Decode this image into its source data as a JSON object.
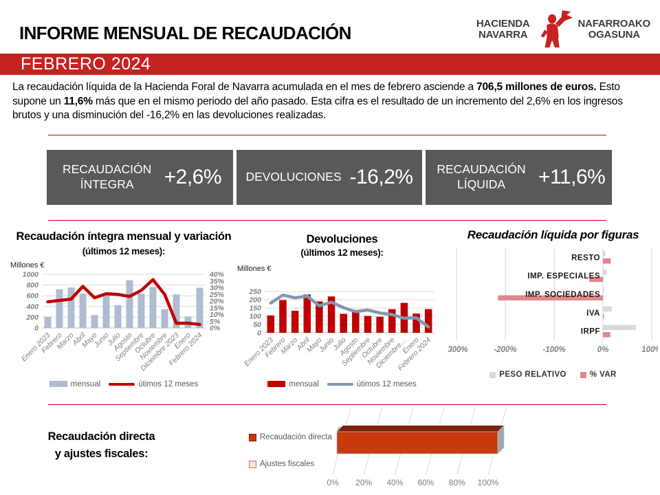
{
  "header": {
    "title": "INFORME MENSUAL DE RECAUDACIÓN",
    "banner": "FEBRERO 2024",
    "logo": {
      "hacienda_line1": "HACIENDA",
      "hacienda_line2": "NAVARRA",
      "ogasuna_line1": "NAFARROAKO",
      "ogasuna_line2": "OGASUNA"
    }
  },
  "intro": {
    "pre": "La recaudación líquida de la Hacienda Foral de Navarra acumulada en el mes de febrero asciende a ",
    "bold1": "706,5 millones de euros.",
    "mid": " Esto supone un ",
    "bold2": "11,6%",
    "post": " más que en el mismo periodo del año pasado. Esta cifra es el resultado de un incremento del 2,6% en los ingresos brutos y una disminución del -16,2% en las devoluciones realizadas."
  },
  "kpis": [
    {
      "label": "RECAUDACIÓN ÍNTEGRA",
      "value": "+2,6%"
    },
    {
      "label": "DEVOLUCIONES",
      "value": "-16,2%"
    },
    {
      "label": "RECAUDACIÓN LÍQUIDA",
      "value": "+11,6%"
    }
  ],
  "bottom_section": {
    "title_line1": "Recaudación directa",
    "title_line2": "y ajustes fiscales:"
  },
  "chart_data": [
    {
      "id": "integra",
      "type": "bar+line",
      "title_main": "Recaudación íntegra mensual y variación",
      "title_sub": "(últimos 12 meses):",
      "units_label": "Millones €",
      "categories": [
        "Enero 2023",
        "Febrero",
        "Marzo",
        "Abril",
        "Mayo",
        "Junio",
        "Julio",
        "Agosto",
        "Septiembre",
        "Octubre",
        "Noviembre",
        "Diciembre 2023",
        "Enero",
        "Febrero 2024"
      ],
      "bar_series": {
        "name": "mensual",
        "values": [
          210,
          720,
          755,
          640,
          240,
          615,
          425,
          890,
          640,
          765,
          350,
          625,
          215,
          750
        ]
      },
      "line_series": {
        "name": "útimos 12 meses",
        "axis": "right",
        "values": [
          19.5,
          20.5,
          21.5,
          31,
          22.5,
          25.5,
          25,
          23.5,
          28,
          36,
          25,
          3.5,
          3.5,
          2.6
        ]
      },
      "y_left": {
        "min": 0,
        "max": 1000,
        "step": 200
      },
      "y_right": {
        "min": 0,
        "max": 40,
        "step": 5,
        "suffix": "%"
      }
    },
    {
      "id": "devoluciones",
      "type": "bar+line",
      "title_main": "Devoluciones",
      "title_sub": "(últimos 12 meses):",
      "units_label": "Millones €",
      "categories": [
        "Enero 2023",
        "Febrero",
        "Marzo",
        "Abril",
        "Mayo",
        "Junio",
        "Julio",
        "Agosto",
        "Septiembre",
        "Octubre",
        "Noviembre",
        "Diciembre…",
        "Enero",
        "Febrero 2024"
      ],
      "bar_series": {
        "name": "mensual",
        "values": [
          105,
          198,
          133,
          232,
          190,
          220,
          115,
          128,
          102,
          97,
          143,
          181,
          116,
          143
        ]
      },
      "line_series": {
        "name": "útimos 12 meses",
        "axis": "left",
        "values": [
          180,
          228,
          212,
          222,
          163,
          185,
          152,
          128,
          138,
          120,
          110,
          88,
          90,
          35
        ]
      },
      "y_left": {
        "min": 0,
        "max": 250,
        "step": 50
      }
    },
    {
      "id": "figuras",
      "type": "hbar-grouped",
      "title": "Recaudación líquida por figuras",
      "categories": [
        "RESTO",
        "IMP. ESPECIALES",
        "IMP. SOCIEDADES",
        "IVA",
        "IRPF"
      ],
      "series": [
        {
          "name": "PESO RELATIVO",
          "values": [
            5,
            8,
            2,
            18,
            68
          ]
        },
        {
          "name": "% VAR",
          "values": [
            16,
            -28,
            -215,
            2,
            15
          ]
        }
      ],
      "x_axis": {
        "min": -300,
        "max": 100,
        "step": 100,
        "suffix": "%"
      }
    },
    {
      "id": "directa",
      "type": "hbar-3d",
      "series": [
        {
          "name": "Recaudación directa",
          "value": 100
        },
        {
          "name": "Ajustes fiscales",
          "value": 0
        }
      ],
      "x_axis": {
        "min": 0,
        "max": 100,
        "step": 20,
        "suffix": "%"
      }
    }
  ],
  "colors": {
    "accent_red": "#C42322",
    "separator_red": "#C00000",
    "kpi_bg": "#595959",
    "bar_blue": "#AEBBD1",
    "line_red": "#C00000",
    "bar_red": "#C00000",
    "line_gray": "#8497B0",
    "bar_gray": "#D9D9D9",
    "bar_salmon": "#E2878D",
    "grid_blue": "#BDD7EE",
    "bar3d_front": "#C83A0B",
    "bar3d_top": "#7E2405",
    "bar3d_side": "#A6A6A6",
    "legend2_fill": "#F2E4DA"
  }
}
